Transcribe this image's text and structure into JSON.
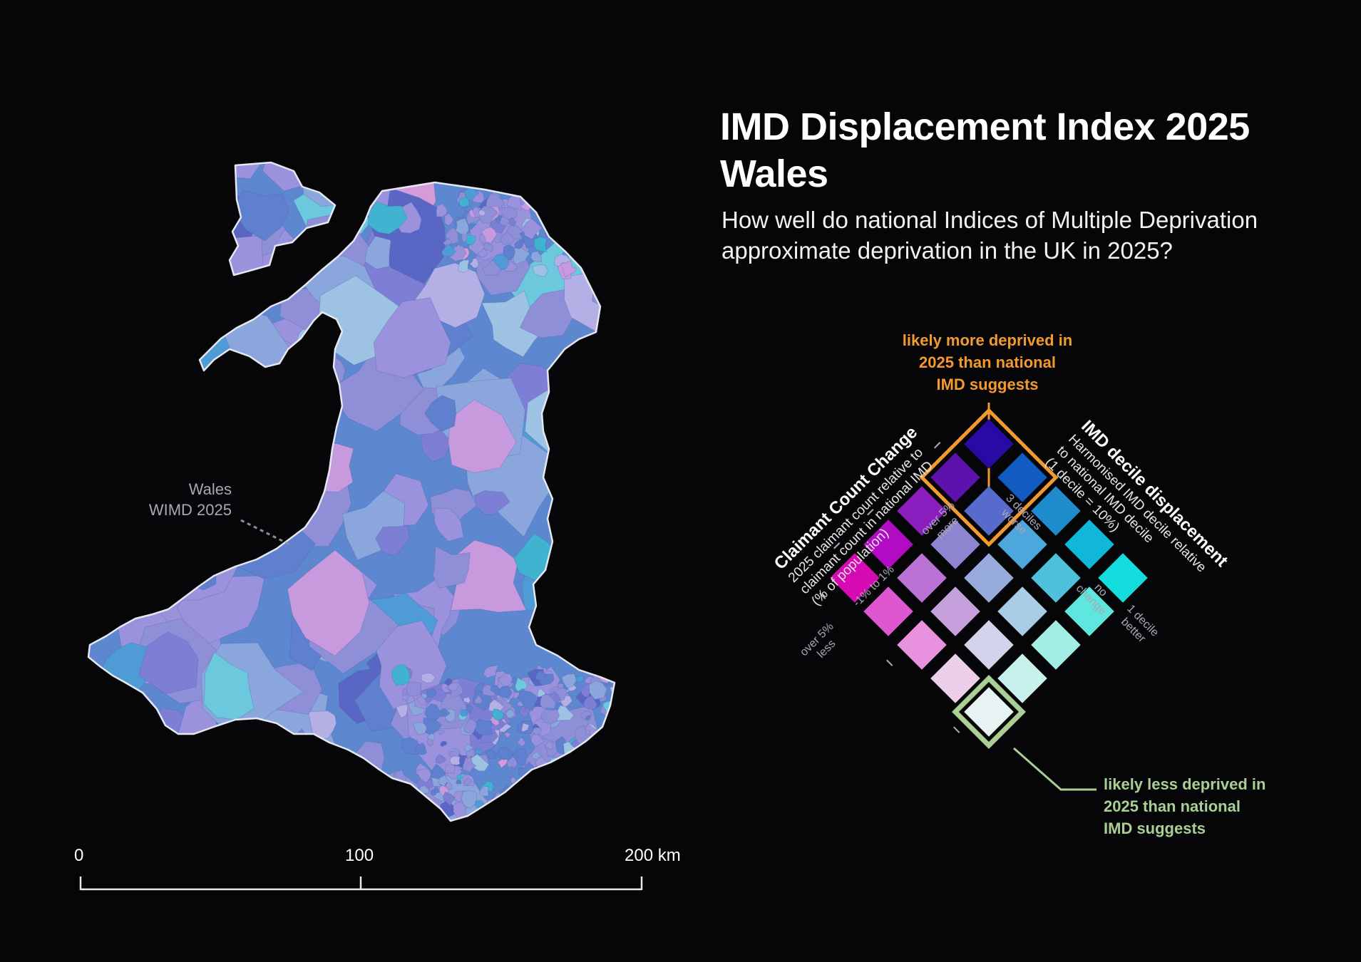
{
  "header": {
    "title_line1": "IMD Displacement Index 2025",
    "title_line2": "Wales",
    "subtitle_line1": "How well do national Indices of Multiple Deprivation",
    "subtitle_line2": "approximate deprivation in the UK in 2025?"
  },
  "map": {
    "label_line1": "Wales",
    "label_line2": "WIMD 2025"
  },
  "legend": {
    "top_callout": [
      "likely more deprived in",
      "2025 than national",
      "IMD suggests"
    ],
    "bottom_callout": [
      "likely less deprived in",
      "2025 than national",
      "IMD suggests"
    ],
    "left_axis": {
      "title": "Claimant Count Change",
      "desc": [
        "2025 claimant count relative to",
        "claimant count in national IMD",
        "(% of population)"
      ],
      "ticks": [
        [
          "over 5%",
          "more"
        ],
        [
          "-1% to 1%"
        ],
        [
          "over 5%",
          "less"
        ]
      ]
    },
    "right_axis": {
      "title": "IMD decile displacement",
      "desc": [
        "Harmonised IMD decile relative",
        "to national IMD decile",
        "(1 decile = 10%)"
      ],
      "ticks": [
        [
          "3 deciles",
          "worse"
        ],
        [
          "no",
          "change"
        ],
        [
          "1 decile",
          "better"
        ]
      ]
    },
    "grid_colors": [
      [
        "#e6f3f2",
        "#c7f2ec",
        "#a1eee4",
        "#5fe6df",
        "#13dcdc"
      ],
      [
        "#ecd0ea",
        "#d2d3ea",
        "#a9cde4",
        "#4fc0dc",
        "#11b7d6"
      ],
      [
        "#e891de",
        "#c6a0dc",
        "#98acdc",
        "#4da6dc",
        "#1d8bcc"
      ],
      [
        "#dd58d0",
        "#ba73d4",
        "#8d85d0",
        "#566bcc",
        "#105cc0"
      ],
      [
        "#d60ab2",
        "#b10cc3",
        "#8a1dbd",
        "#5d11ad",
        "#2a0aa4"
      ]
    ],
    "accent_colors": {
      "highlight_more": "#f39a2e",
      "highlight_less": "#a9cf94"
    }
  },
  "scale_bar": {
    "labels": [
      "0",
      "100",
      "200 km"
    ]
  }
}
